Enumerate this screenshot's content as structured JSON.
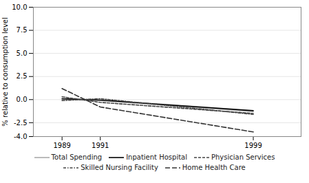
{
  "chart_data": {
    "type": "line",
    "x": [
      1989,
      1991,
      1999
    ],
    "series": [
      {
        "name": "Total Spending",
        "color": "#aaaaaa",
        "line_style": "solid",
        "values": [
          0.05,
          -0.1,
          -1.3
        ]
      },
      {
        "name": "Inpatient Hospital",
        "color": "#000000",
        "line_style": "solid",
        "values": [
          0.1,
          -0.05,
          -1.2
        ]
      },
      {
        "name": "Physician Services",
        "color": "#444444",
        "line_style": "dashed",
        "values": [
          0.3,
          -0.3,
          -1.5
        ]
      },
      {
        "name": "Skilled Nursing Facility",
        "color": "#444444",
        "line_style": "dashdot",
        "values": [
          -0.1,
          0.1,
          -1.6
        ]
      },
      {
        "name": "Home Health Care",
        "color": "#333333",
        "line_style": "longdashed",
        "values": [
          1.2,
          -0.8,
          -3.5
        ]
      }
    ],
    "ylabel": "% relative to consumption level",
    "ylim": [
      -4.0,
      10.0
    ],
    "yticks": [
      {
        "value": 10,
        "label": "10.0"
      },
      7.5,
      {
        "value": 5,
        "label": "5.0"
      },
      2.5,
      {
        "value": 0,
        "label": "0.0"
      },
      -2.5,
      {
        "value": -4,
        "label": "-4.0"
      }
    ],
    "xlim": [
      1987.5,
      2001.5
    ],
    "xticks": [
      1989,
      1991,
      1999
    ],
    "grid": true,
    "legend": "bottom"
  }
}
